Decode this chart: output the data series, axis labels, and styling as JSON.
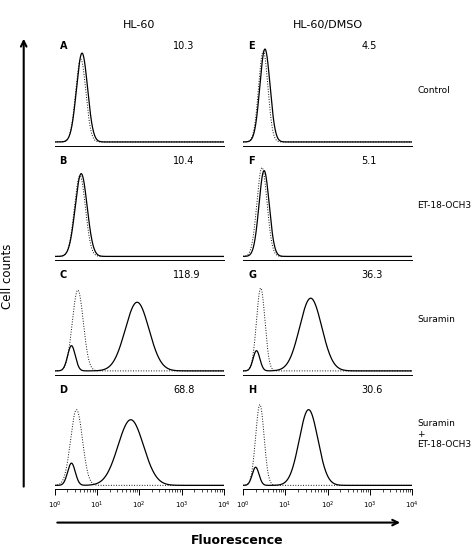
{
  "col1_title": "HL-60",
  "col2_title": "HL-60/DMSO",
  "ylabel": "Cell counts",
  "xlabel": "Fluorescence",
  "panels": [
    {
      "label": "A",
      "value": "10.3",
      "col": 0,
      "row": 0,
      "dot_mu": 0.62,
      "dot_sig": 0.12,
      "dot_amp": 0.82,
      "sol_mu": 0.65,
      "sol_sig": 0.13,
      "sol_amp": 0.88,
      "sol2_mu": null,
      "sol2_sig": null,
      "sol2_amp": null
    },
    {
      "label": "B",
      "value": "10.4",
      "col": 0,
      "row": 1,
      "dot_mu": 0.6,
      "dot_sig": 0.13,
      "dot_amp": 0.8,
      "sol_mu": 0.63,
      "sol_sig": 0.14,
      "sol_amp": 0.82,
      "sol2_mu": null,
      "sol2_sig": null,
      "sol2_amp": null
    },
    {
      "label": "C",
      "value": "118.9",
      "col": 0,
      "row": 2,
      "dot_mu": 0.55,
      "dot_sig": 0.13,
      "dot_amp": 0.8,
      "sol_mu": 0.4,
      "sol_sig": 0.09,
      "sol_amp": 0.25,
      "sol2_mu": 1.95,
      "sol2_sig": 0.28,
      "sol2_amp": 0.68
    },
    {
      "label": "D",
      "value": "68.8",
      "col": 0,
      "row": 3,
      "dot_mu": 0.52,
      "dot_sig": 0.14,
      "dot_amp": 0.75,
      "sol_mu": 0.4,
      "sol_sig": 0.09,
      "sol_amp": 0.22,
      "sol2_mu": 1.8,
      "sol2_sig": 0.3,
      "sol2_amp": 0.65
    },
    {
      "label": "E",
      "value": "4.5",
      "col": 1,
      "row": 0,
      "dot_mu": 0.48,
      "dot_sig": 0.11,
      "dot_amp": 0.9,
      "sol_mu": 0.52,
      "sol_sig": 0.12,
      "sol_amp": 0.92,
      "sol2_mu": null,
      "sol2_sig": null,
      "sol2_amp": null
    },
    {
      "label": "F",
      "value": "5.1",
      "col": 1,
      "row": 1,
      "dot_mu": 0.45,
      "dot_sig": 0.12,
      "dot_amp": 0.88,
      "sol_mu": 0.5,
      "sol_sig": 0.12,
      "sol_amp": 0.85,
      "sol2_mu": null,
      "sol2_sig": null,
      "sol2_amp": null
    },
    {
      "label": "G",
      "value": "36.3",
      "col": 1,
      "row": 2,
      "dot_mu": 0.42,
      "dot_sig": 0.1,
      "dot_amp": 0.82,
      "sol_mu": 0.32,
      "sol_sig": 0.08,
      "sol_amp": 0.2,
      "sol2_mu": 1.6,
      "sol2_sig": 0.26,
      "sol2_amp": 0.72
    },
    {
      "label": "H",
      "value": "30.6",
      "col": 1,
      "row": 3,
      "dot_mu": 0.4,
      "dot_sig": 0.1,
      "dot_amp": 0.8,
      "sol_mu": 0.3,
      "sol_sig": 0.08,
      "sol_amp": 0.18,
      "sol2_mu": 1.55,
      "sol2_sig": 0.22,
      "sol2_amp": 0.75
    }
  ],
  "row_labels": [
    "Control",
    "ET-18-OCH3",
    "Suramin",
    "Suramin\n+\nET-18-OCH3"
  ],
  "bg_color": "#ffffff"
}
